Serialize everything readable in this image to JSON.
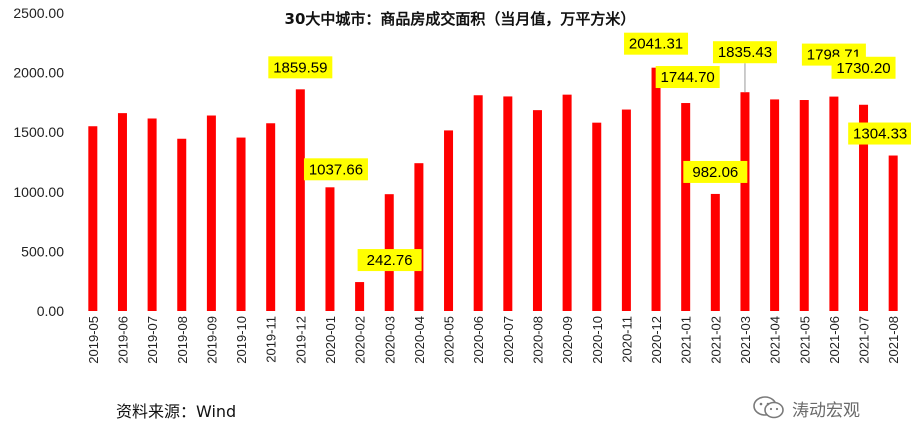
{
  "chart_data": {
    "type": "bar",
    "title": "30大中城市：商品房成交面积（当月值，万平方米）",
    "xlabel": "",
    "ylabel": "",
    "ylim": [
      0,
      2500
    ],
    "yticks": [
      "0.00",
      "500.00",
      "1000.00",
      "1500.00",
      "2000.00",
      "2500.00"
    ],
    "grid": false,
    "legend": "none",
    "bar_color": "#FF0000",
    "label_bg_color": "#FFFF00",
    "categories": [
      "2019-05",
      "2019-06",
      "2019-07",
      "2019-08",
      "2019-09",
      "2019-10",
      "2019-11",
      "2019-12",
      "2020-01",
      "2020-02",
      "2020-03",
      "2020-04",
      "2020-05",
      "2020-06",
      "2020-07",
      "2020-08",
      "2020-09",
      "2020-10",
      "2020-11",
      "2020-12",
      "2021-01",
      "2021-02",
      "2021-03",
      "2021-04",
      "2021-05",
      "2021-06",
      "2021-07",
      "2021-08"
    ],
    "values": [
      1550,
      1660,
      1615,
      1445,
      1640,
      1455,
      1575,
      1859.59,
      1037.66,
      242.76,
      980,
      1240,
      1515,
      1810,
      1800,
      1685,
      1815,
      1580,
      1690,
      2041.31,
      1744.7,
      982.06,
      1835.43,
      1775,
      1770,
      1798.71,
      1730.2,
      1304.33
    ],
    "data_labels": [
      {
        "index": 7,
        "text": "1859.59"
      },
      {
        "index": 8,
        "text": "1037.66"
      },
      {
        "index": 9,
        "text": "242.76"
      },
      {
        "index": 19,
        "text": "2041.31"
      },
      {
        "index": 20,
        "text": "1744.70"
      },
      {
        "index": 21,
        "text": "982.06"
      },
      {
        "index": 22,
        "text": "1835.43"
      },
      {
        "index": 25,
        "text": "1798.71"
      },
      {
        "index": 26,
        "text": "1730.20"
      },
      {
        "index": 27,
        "text": "1304.33"
      }
    ]
  },
  "source": "资料来源：Wind",
  "watermark": {
    "icon": "wechat-icon",
    "text": "涛动宏观"
  }
}
